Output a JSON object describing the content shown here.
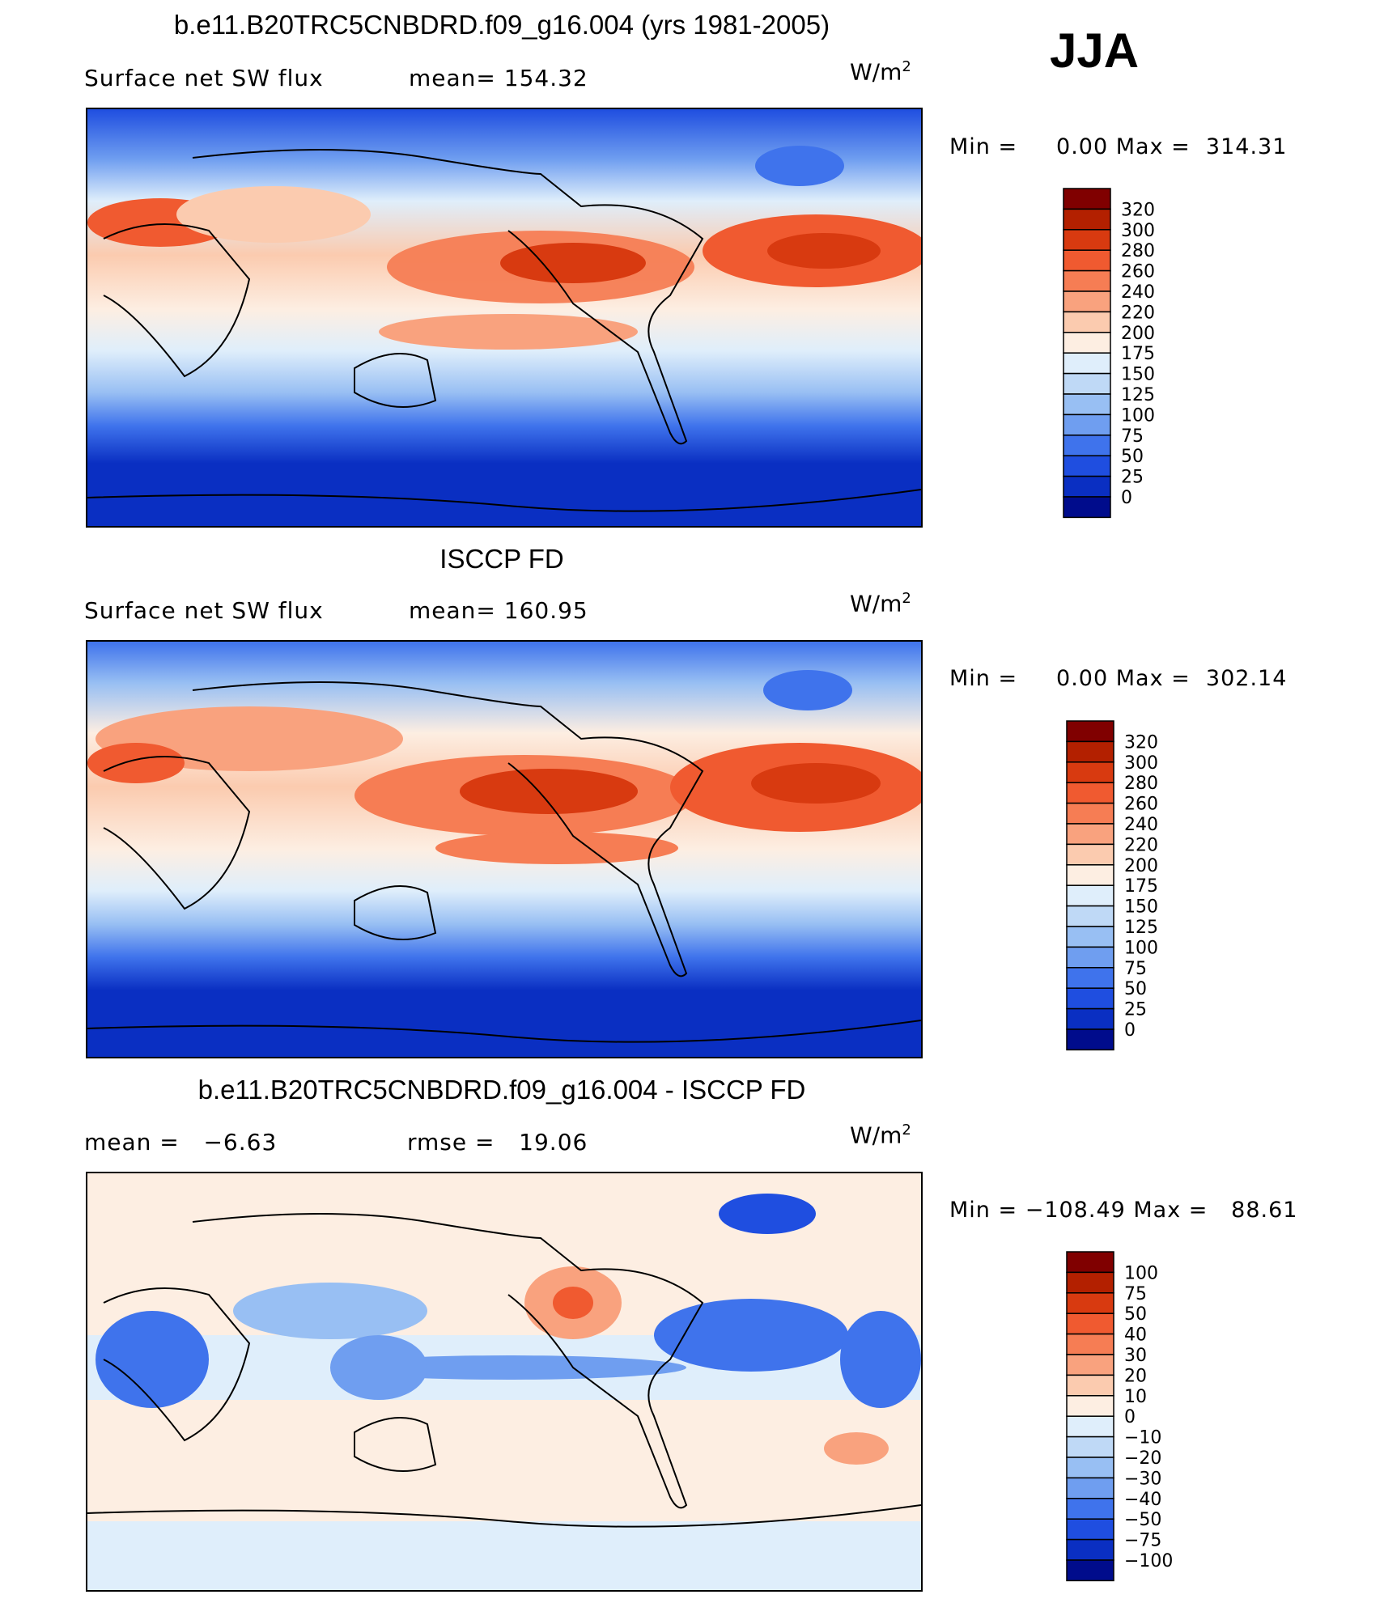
{
  "season": "JJA",
  "units_base": "W/m",
  "units_exp": "2",
  "panels": [
    {
      "title": "b.e11.B20TRC5CNBDRD.f09_g16.004 (yrs 1981-2005)",
      "left_label": "Surface net SW flux",
      "right_label": "mean= 154.32",
      "minmax": "Min =     0.00 Max =  314.31",
      "colorbar_labels": [
        "320",
        "300",
        "280",
        "260",
        "240",
        "220",
        "200",
        "175",
        "150",
        "125",
        "100",
        "75",
        "50",
        "25",
        "0"
      ]
    },
    {
      "title": "ISCCP FD",
      "left_label": "Surface net SW flux",
      "right_label": "mean= 160.95",
      "minmax": "Min =     0.00 Max =  302.14",
      "colorbar_labels": [
        "320",
        "300",
        "280",
        "260",
        "240",
        "220",
        "200",
        "175",
        "150",
        "125",
        "100",
        "75",
        "50",
        "25",
        "0"
      ]
    },
    {
      "title": "b.e11.B20TRC5CNBDRD.f09_g16.004 - ISCCP FD",
      "left_label": "mean =   −6.63",
      "right_label": "rmse =   19.06",
      "minmax": "Min = −108.49 Max =   88.61",
      "colorbar_labels": [
        "100",
        "75",
        "50",
        "40",
        "30",
        "20",
        "10",
        "0",
        "−10",
        "−20",
        "−30",
        "−40",
        "−50",
        "−75",
        "−100"
      ]
    }
  ],
  "palette": [
    "#800000",
    "#b32000",
    "#d83a10",
    "#f05a30",
    "#f67d54",
    "#f9a27e",
    "#fbcbaf",
    "#fdeee2",
    "#dfeefb",
    "#bfd9f6",
    "#98bff3",
    "#6f9ef0",
    "#3f73ec",
    "#1f4ee0",
    "#0a2fc2",
    "#000c8c"
  ]
}
